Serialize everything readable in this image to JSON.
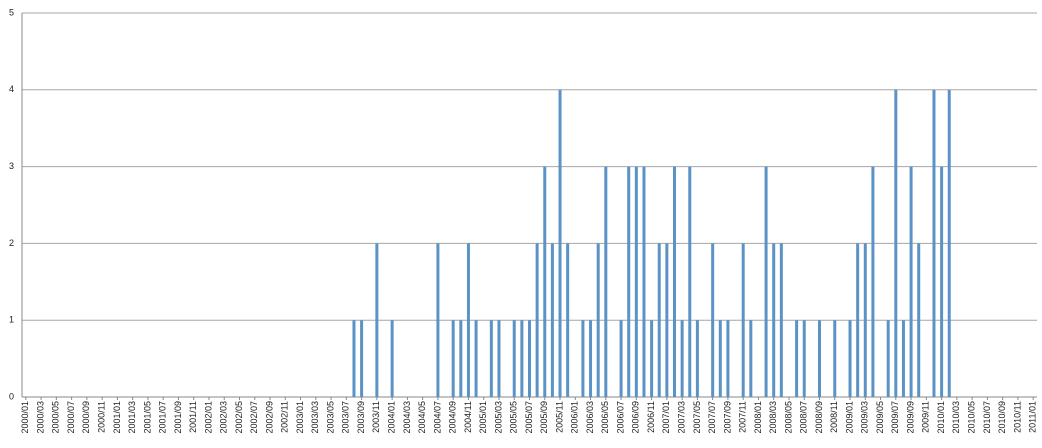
{
  "chart_data": {
    "type": "bar",
    "categories": [
      "2000/01",
      null,
      "2000/03",
      null,
      "2000/05",
      null,
      "2000/07",
      null,
      "2000/09",
      null,
      "2000/11",
      null,
      "2001/01",
      null,
      "2001/03",
      null,
      "2001/05",
      null,
      "2001/07",
      null,
      "2001/09",
      null,
      "2001/11",
      null,
      "2002/01",
      null,
      "2002/03",
      null,
      "2002/05",
      null,
      "2002/07",
      null,
      "2002/09",
      null,
      "2002/11",
      null,
      "2003/01",
      null,
      "2003/03",
      null,
      "2003/05",
      null,
      "2003/07",
      null,
      "2003/09",
      null,
      "2003/11",
      null,
      "2004/01",
      null,
      "2004/03",
      null,
      "2004/05",
      null,
      "2004/07",
      null,
      "2004/09",
      null,
      "2004/11",
      null,
      "2005/01",
      null,
      "2005/03",
      null,
      "2005/05",
      null,
      "2005/07",
      null,
      "2005/09",
      null,
      "2005/11",
      null,
      "2006/01",
      null,
      "2006/03",
      null,
      "2006/05",
      null,
      "2006/07",
      null,
      "2006/09",
      null,
      "2006/11",
      null,
      "2007/01",
      null,
      "2007/03",
      null,
      "2007/05",
      null,
      "2007/07",
      null,
      "2007/09",
      null,
      "2007/11",
      null,
      "2008/01",
      null,
      "2008/03",
      null,
      "2008/05",
      null,
      "2008/07",
      null,
      "2008/09",
      null,
      "2008/11",
      null,
      "2009/01",
      null,
      "2009/03",
      null,
      "2009/05",
      null,
      "2009/07",
      null,
      "2009/09",
      null,
      "2009/11",
      null,
      "2010/01",
      null,
      "2010/03",
      null,
      "2010/05",
      null,
      "2010/07",
      null,
      "2010/09",
      null,
      "2010/11",
      null,
      "2011/01"
    ],
    "values": [
      0,
      0,
      0,
      0,
      0,
      0,
      0,
      0,
      0,
      0,
      0,
      0,
      0,
      0,
      0,
      0,
      0,
      0,
      0,
      0,
      0,
      0,
      0,
      0,
      0,
      0,
      0,
      0,
      0,
      0,
      0,
      0,
      0,
      0,
      0,
      0,
      0,
      0,
      0,
      0,
      0,
      0,
      0,
      1,
      1,
      0,
      2,
      0,
      1,
      0,
      0,
      0,
      0,
      0,
      2,
      0,
      1,
      1,
      2,
      1,
      0,
      1,
      1,
      0,
      1,
      1,
      1,
      2,
      3,
      2,
      4,
      2,
      0,
      1,
      1,
      2,
      3,
      0,
      1,
      3,
      3,
      3,
      1,
      2,
      2,
      3,
      1,
      3,
      1,
      0,
      2,
      1,
      1,
      0,
      2,
      1,
      0,
      3,
      2,
      2,
      0,
      1,
      1,
      0,
      1,
      0,
      1,
      0,
      1,
      2,
      2,
      3,
      0,
      1,
      4,
      1,
      3,
      2,
      0,
      4,
      3,
      4,
      0,
      0,
      0,
      0,
      0,
      0,
      0,
      0,
      0,
      0,
      0
    ],
    "color": "#5b93c7",
    "ylim": [
      0,
      5
    ],
    "yticks": [
      0,
      1,
      2,
      3,
      4,
      5
    ],
    "grid": true
  }
}
